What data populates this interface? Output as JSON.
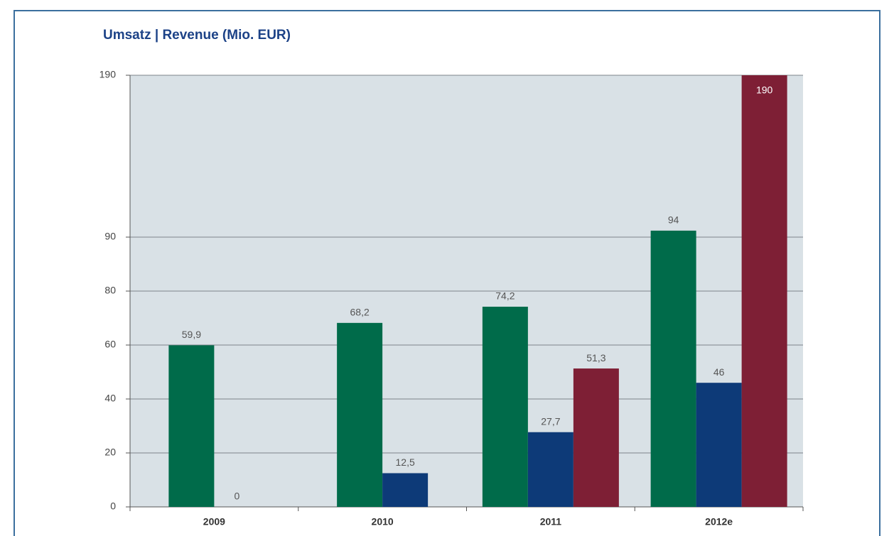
{
  "chart_data": {
    "type": "bar",
    "title": "Umsatz | Revenue (Mio. EUR)",
    "categories": [
      "2009",
      "2010",
      "2011",
      "2012e"
    ],
    "series": [
      {
        "color": "#006b4a",
        "values": [
          59.9,
          68.2,
          74.2,
          94
        ],
        "value_labels": [
          "59,9",
          "68,2",
          "74,2",
          "94"
        ]
      },
      {
        "color": "#0d3a78",
        "values": [
          0,
          12.5,
          27.7,
          46
        ],
        "value_labels": [
          "0",
          "12,5",
          "27,7",
          "46"
        ]
      },
      {
        "color": "#7e1f35",
        "values": [
          null,
          null,
          51.3,
          190
        ],
        "value_labels": [
          null,
          null,
          "51,3",
          "190"
        ]
      }
    ],
    "ylim": [
      0,
      190
    ],
    "yticks": [
      0,
      20,
      40,
      60,
      80,
      90,
      190
    ],
    "grid": true
  }
}
